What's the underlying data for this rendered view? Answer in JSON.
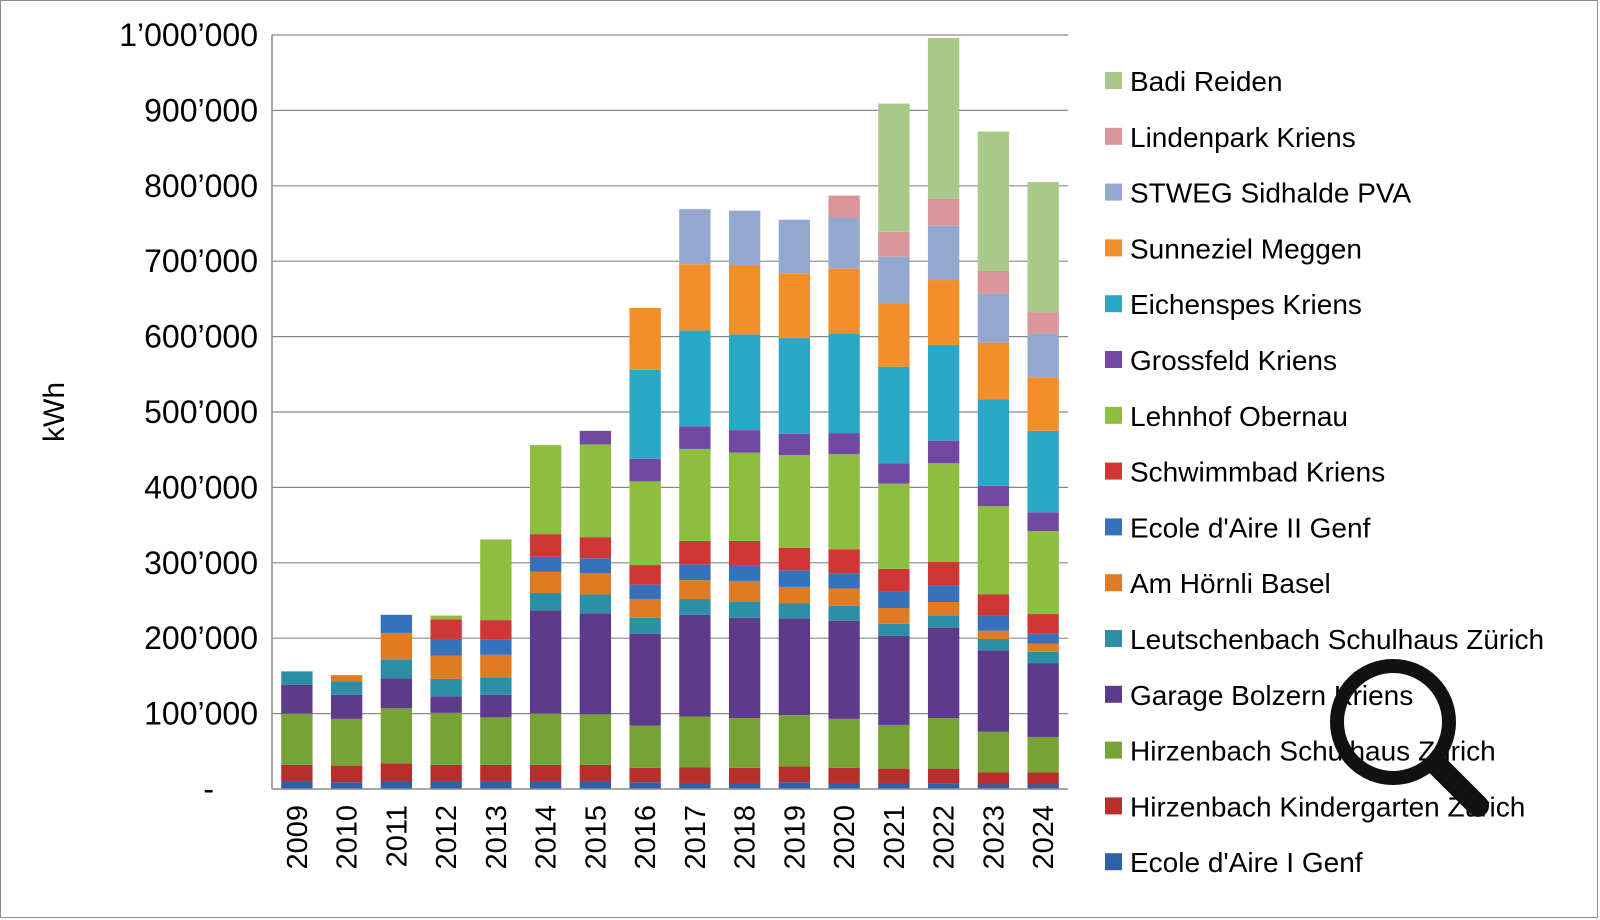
{
  "chart_data": {
    "type": "bar",
    "stacked": true,
    "ylabel": "kWh",
    "xlabel": "",
    "ylim": [
      0,
      1000000
    ],
    "yticks": [
      0,
      100000,
      200000,
      300000,
      400000,
      500000,
      600000,
      700000,
      800000,
      900000,
      1000000
    ],
    "ytick_labels": [
      "-",
      "100’000",
      "200’000",
      "300’000",
      "400’000",
      "500’000",
      "600’000",
      "700’000",
      "800’000",
      "900’000",
      "1’000’000"
    ],
    "grid": true,
    "legend_position": "right",
    "categories": [
      "2009",
      "2010",
      "2011",
      "2012",
      "2013",
      "2014",
      "2015",
      "2016",
      "2017",
      "2018",
      "2019",
      "2020",
      "2021",
      "2022",
      "2023",
      "2024"
    ],
    "series": [
      {
        "name": "Ecole d'Aire I Genf",
        "color": "#2E5FA8",
        "values": [
          10000,
          9000,
          10000,
          10000,
          10000,
          10000,
          10000,
          9000,
          8000,
          8000,
          9000,
          8000,
          8000,
          7000,
          6000,
          6000
        ]
      },
      {
        "name": "Hirzenbach Kindergarten Zürich",
        "color": "#B72E2B",
        "values": [
          22000,
          22000,
          24000,
          22000,
          22000,
          22000,
          22000,
          19000,
          21000,
          20000,
          21000,
          20000,
          19000,
          20000,
          16000,
          16000
        ]
      },
      {
        "name": "Hirzenbach Schulhaus Zürich",
        "color": "#77A235",
        "values": [
          68000,
          62000,
          73000,
          69000,
          63000,
          68000,
          67000,
          56000,
          67000,
          66000,
          68000,
          65000,
          58000,
          67000,
          54000,
          47000
        ]
      },
      {
        "name": "Garage Bolzern Kriens",
        "color": "#5E3A8A",
        "values": [
          38000,
          32000,
          40000,
          22000,
          30000,
          137000,
          134000,
          122000,
          135000,
          133000,
          128000,
          130000,
          118000,
          120000,
          108000,
          98000
        ]
      },
      {
        "name": "Leutschenbach Schulhaus Zürich",
        "color": "#2C8FA6",
        "values": [
          18000,
          18000,
          25000,
          23000,
          23000,
          23000,
          25000,
          21000,
          21000,
          22000,
          20000,
          20000,
          16000,
          16000,
          15000,
          15000
        ]
      },
      {
        "name": "Am Hörnli Basel",
        "color": "#E07B24",
        "values": [
          0,
          8000,
          35000,
          31000,
          30000,
          28000,
          28000,
          25000,
          25000,
          27000,
          22000,
          23000,
          21000,
          18000,
          11000,
          11000
        ]
      },
      {
        "name": "Ecole d'Aire II Genf",
        "color": "#3671BC",
        "values": [
          0,
          0,
          24000,
          22000,
          20000,
          20000,
          20000,
          19000,
          21000,
          21000,
          22000,
          20000,
          22000,
          22000,
          20000,
          13000
        ]
      },
      {
        "name": "Schwimmbad Kriens",
        "color": "#CF3634",
        "values": [
          0,
          0,
          0,
          26000,
          26000,
          30000,
          28000,
          26000,
          31000,
          32000,
          30000,
          32000,
          30000,
          31000,
          28000,
          26000
        ]
      },
      {
        "name": "Lehnhof Obernau",
        "color": "#8DBE3F",
        "values": [
          0,
          0,
          0,
          5000,
          107000,
          118000,
          123000,
          111000,
          122000,
          117000,
          123000,
          126000,
          113000,
          131000,
          117000,
          110000
        ]
      },
      {
        "name": "Grossfeld Kriens",
        "color": "#7348A2",
        "values": [
          0,
          0,
          0,
          0,
          0,
          0,
          18000,
          30000,
          30000,
          30000,
          28000,
          28000,
          27000,
          30000,
          27000,
          25000
        ]
      },
      {
        "name": "Eichenspes Kriens",
        "color": "#2BA8C6",
        "values": [
          0,
          0,
          0,
          0,
          0,
          0,
          0,
          118000,
          127000,
          127000,
          127000,
          132000,
          128000,
          127000,
          115000,
          108000
        ]
      },
      {
        "name": "Sunneziel Meggen",
        "color": "#F28F2A",
        "values": [
          0,
          0,
          0,
          0,
          0,
          0,
          0,
          82000,
          88000,
          92000,
          86000,
          86000,
          84000,
          86000,
          75000,
          71000
        ]
      },
      {
        "name": "STWEG Sidhalde PVA",
        "color": "#93A8CF",
        "values": [
          0,
          0,
          0,
          0,
          0,
          0,
          0,
          0,
          73000,
          72000,
          71000,
          68000,
          62000,
          72000,
          65000,
          58000
        ]
      },
      {
        "name": "Lindenpark Kriens",
        "color": "#D9959A",
        "values": [
          0,
          0,
          0,
          0,
          0,
          0,
          0,
          0,
          0,
          0,
          0,
          29000,
          33000,
          36000,
          30000,
          28000
        ]
      },
      {
        "name": "Badi Reiden",
        "color": "#A9C98B",
        "values": [
          0,
          0,
          0,
          0,
          0,
          0,
          0,
          0,
          0,
          0,
          0,
          0,
          170000,
          213000,
          185000,
          173000
        ]
      }
    ]
  },
  "zoom_icon": "magnifier-icon"
}
